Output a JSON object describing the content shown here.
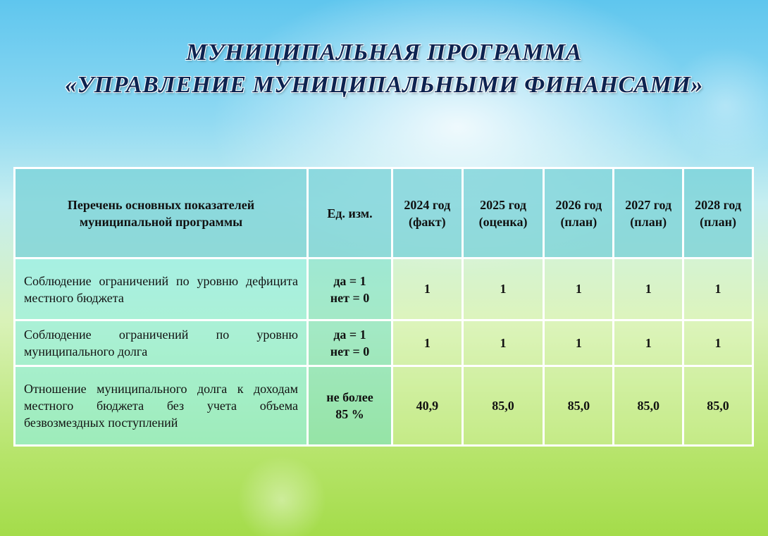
{
  "title": {
    "line1": "МУНИЦИПАЛЬНАЯ ПРОГРАММА",
    "line2": "«УПРАВЛЕНИЕ МУНИЦИПАЛЬНЫМИ ФИНАНСАМИ»"
  },
  "table": {
    "headers": [
      "Перечень основных показателей муниципальной программы",
      "Ед. изм.",
      "2024 год (факт)",
      "2025 год (оценка)",
      "2026 год (план)",
      "2027 год (план)",
      "2028 год (план)"
    ],
    "rows": [
      {
        "name": "Соблюдение ограничений по уровню дефицита местного бюджета",
        "unit_line1": "да = 1",
        "unit_line2": "нет = 0",
        "values": [
          "1",
          "1",
          "1",
          "1",
          "1"
        ]
      },
      {
        "name": "Соблюдение ограничений по уровню муниципального долга",
        "unit_line1": "да = 1",
        "unit_line2": "нет = 0",
        "values": [
          "1",
          "1",
          "1",
          "1",
          "1"
        ]
      },
      {
        "name": "Отношение муниципального долга к доходам местного бюджета без учета объема безвозмездных поступлений",
        "unit_line1": "не более",
        "unit_line2": "85 %",
        "values": [
          "40,9",
          "85,0",
          "85,0",
          "85,0",
          "85,0"
        ]
      }
    ]
  }
}
